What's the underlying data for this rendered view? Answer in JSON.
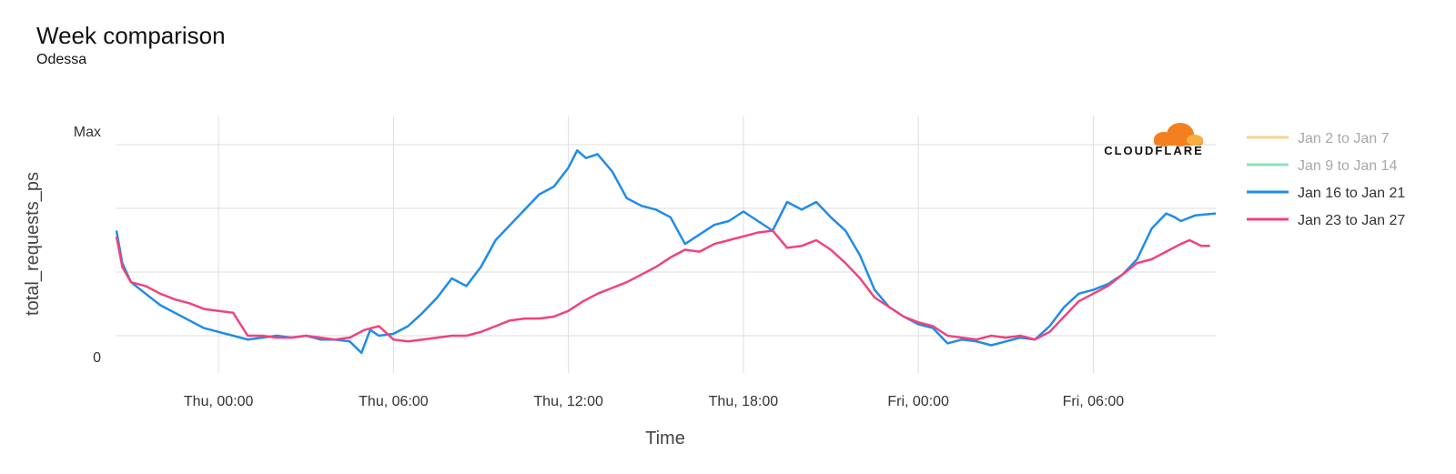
{
  "header": {
    "title": "Week comparison",
    "subtitle": "Odessa"
  },
  "logo": {
    "text": "CLOUDFLARE",
    "icon": "cloud-icon",
    "color": "#f38020"
  },
  "chart_data": {
    "type": "line",
    "xlabel": "Time",
    "ylabel": "total_requests_ps",
    "x_start_hour": 20.5,
    "x_end_hour": 58.2,
    "x_ticks": [
      {
        "hour": 24,
        "label": "Thu, 00:00"
      },
      {
        "hour": 30,
        "label": "Thu, 06:00"
      },
      {
        "hour": 36,
        "label": "Thu, 12:00"
      },
      {
        "hour": 42,
        "label": "Thu, 18:00"
      },
      {
        "hour": 48,
        "label": "Fri, 00:00"
      },
      {
        "hour": 54,
        "label": "Fri, 06:00"
      }
    ],
    "y_ticks": [
      {
        "label": "Max",
        "value": 1
      },
      {
        "label": "0",
        "value": 0
      }
    ],
    "ylim": [
      -0.12,
      1.08
    ],
    "grid": true,
    "legend_position": "right",
    "series": [
      {
        "name": "Jan 2 to Jan 7",
        "color": "#f5d38a",
        "active": false,
        "points": []
      },
      {
        "name": "Jan 9 to Jan 14",
        "color": "#8fe0b8",
        "active": false,
        "points": []
      },
      {
        "name": "Jan 16 to Jan 21",
        "color": "#1f8ceb",
        "active": true,
        "points": [
          [
            20.5,
            0.55
          ],
          [
            20.7,
            0.38
          ],
          [
            21,
            0.28
          ],
          [
            21.5,
            0.22
          ],
          [
            22,
            0.16
          ],
          [
            22.5,
            0.12
          ],
          [
            23,
            0.08
          ],
          [
            23.5,
            0.04
          ],
          [
            24,
            0.02
          ],
          [
            24.5,
            0.0
          ],
          [
            25,
            -0.02
          ],
          [
            25.5,
            -0.01
          ],
          [
            26,
            0.0
          ],
          [
            26.5,
            -0.01
          ],
          [
            27,
            0.0
          ],
          [
            27.5,
            -0.02
          ],
          [
            28,
            -0.02
          ],
          [
            28.5,
            -0.03
          ],
          [
            28.9,
            -0.09
          ],
          [
            29.2,
            0.03
          ],
          [
            29.5,
            0.0
          ],
          [
            30,
            0.01
          ],
          [
            30.5,
            0.05
          ],
          [
            31,
            0.12
          ],
          [
            31.5,
            0.2
          ],
          [
            32,
            0.3
          ],
          [
            32.5,
            0.26
          ],
          [
            33,
            0.36
          ],
          [
            33.5,
            0.5
          ],
          [
            34,
            0.58
          ],
          [
            34.5,
            0.66
          ],
          [
            35,
            0.74
          ],
          [
            35.5,
            0.78
          ],
          [
            36,
            0.88
          ],
          [
            36.3,
            0.97
          ],
          [
            36.6,
            0.93
          ],
          [
            37,
            0.95
          ],
          [
            37.5,
            0.86
          ],
          [
            38,
            0.72
          ],
          [
            38.5,
            0.68
          ],
          [
            39,
            0.66
          ],
          [
            39.5,
            0.62
          ],
          [
            40,
            0.48
          ],
          [
            40.5,
            0.53
          ],
          [
            41,
            0.58
          ],
          [
            41.5,
            0.6
          ],
          [
            42,
            0.65
          ],
          [
            42.5,
            0.6
          ],
          [
            43,
            0.55
          ],
          [
            43.5,
            0.7
          ],
          [
            44,
            0.66
          ],
          [
            44.5,
            0.7
          ],
          [
            45,
            0.62
          ],
          [
            45.5,
            0.55
          ],
          [
            46,
            0.42
          ],
          [
            46.5,
            0.24
          ],
          [
            47,
            0.15
          ],
          [
            47.5,
            0.1
          ],
          [
            48,
            0.06
          ],
          [
            48.5,
            0.04
          ],
          [
            49,
            -0.04
          ],
          [
            49.5,
            -0.02
          ],
          [
            50,
            -0.03
          ],
          [
            50.5,
            -0.05
          ],
          [
            51,
            -0.03
          ],
          [
            51.5,
            -0.01
          ],
          [
            52,
            -0.02
          ],
          [
            52.5,
            0.05
          ],
          [
            53,
            0.15
          ],
          [
            53.5,
            0.22
          ],
          [
            54,
            0.24
          ],
          [
            54.5,
            0.27
          ],
          [
            55,
            0.32
          ],
          [
            55.5,
            0.4
          ],
          [
            56,
            0.56
          ],
          [
            56.5,
            0.64
          ],
          [
            56.8,
            0.62
          ],
          [
            57,
            0.6
          ],
          [
            57.5,
            0.63
          ],
          [
            58.2,
            0.64
          ]
        ]
      },
      {
        "name": "Jan 23 to Jan 27",
        "color": "#f0427f",
        "active": true,
        "points": [
          [
            20.5,
            0.52
          ],
          [
            20.7,
            0.36
          ],
          [
            21,
            0.28
          ],
          [
            21.5,
            0.26
          ],
          [
            22,
            0.22
          ],
          [
            22.5,
            0.19
          ],
          [
            23,
            0.17
          ],
          [
            23.5,
            0.14
          ],
          [
            24,
            0.13
          ],
          [
            24.5,
            0.12
          ],
          [
            25,
            0.0
          ],
          [
            25.5,
            0.0
          ],
          [
            26,
            -0.01
          ],
          [
            26.5,
            -0.01
          ],
          [
            27,
            0.0
          ],
          [
            27.5,
            -0.01
          ],
          [
            28,
            -0.02
          ],
          [
            28.5,
            -0.01
          ],
          [
            29,
            0.03
          ],
          [
            29.5,
            0.05
          ],
          [
            30,
            -0.02
          ],
          [
            30.5,
            -0.03
          ],
          [
            31,
            -0.02
          ],
          [
            31.5,
            -0.01
          ],
          [
            32,
            0.0
          ],
          [
            32.5,
            0.0
          ],
          [
            33,
            0.02
          ],
          [
            33.5,
            0.05
          ],
          [
            34,
            0.08
          ],
          [
            34.5,
            0.09
          ],
          [
            35,
            0.09
          ],
          [
            35.5,
            0.1
          ],
          [
            36,
            0.13
          ],
          [
            36.5,
            0.18
          ],
          [
            37,
            0.22
          ],
          [
            37.5,
            0.25
          ],
          [
            38,
            0.28
          ],
          [
            38.5,
            0.32
          ],
          [
            39,
            0.36
          ],
          [
            39.5,
            0.41
          ],
          [
            40,
            0.45
          ],
          [
            40.5,
            0.44
          ],
          [
            41,
            0.48
          ],
          [
            41.5,
            0.5
          ],
          [
            42,
            0.52
          ],
          [
            42.5,
            0.54
          ],
          [
            43,
            0.55
          ],
          [
            43.5,
            0.46
          ],
          [
            44,
            0.47
          ],
          [
            44.5,
            0.5
          ],
          [
            45,
            0.45
          ],
          [
            45.5,
            0.38
          ],
          [
            46,
            0.3
          ],
          [
            46.5,
            0.2
          ],
          [
            47,
            0.15
          ],
          [
            47.5,
            0.1
          ],
          [
            48,
            0.07
          ],
          [
            48.5,
            0.05
          ],
          [
            49,
            0.0
          ],
          [
            49.5,
            -0.01
          ],
          [
            50,
            -0.02
          ],
          [
            50.5,
            0.0
          ],
          [
            51,
            -0.01
          ],
          [
            51.5,
            0.0
          ],
          [
            52,
            -0.02
          ],
          [
            52.5,
            0.02
          ],
          [
            53,
            0.1
          ],
          [
            53.5,
            0.18
          ],
          [
            54,
            0.22
          ],
          [
            54.5,
            0.26
          ],
          [
            55,
            0.32
          ],
          [
            55.5,
            0.38
          ],
          [
            56,
            0.4
          ],
          [
            56.5,
            0.44
          ],
          [
            57,
            0.48
          ],
          [
            57.3,
            0.5
          ],
          [
            57.7,
            0.47
          ],
          [
            58,
            0.47
          ]
        ]
      }
    ]
  }
}
